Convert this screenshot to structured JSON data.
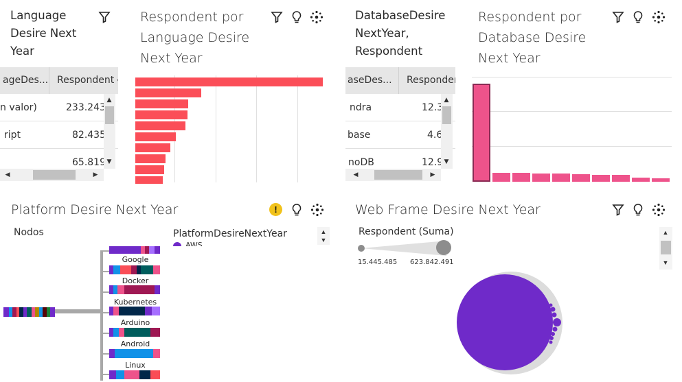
{
  "panels": {
    "lang_table": {
      "title": "Language Desire Next Year",
      "col1_header": "ageDes...",
      "col2_header": "Respondent",
      "rows": [
        {
          "c1": "n valor)",
          "c2": "233.243"
        },
        {
          "c1": "ript",
          "c2": "82.435"
        },
        {
          "c1": "",
          "c2": "65.819"
        }
      ]
    },
    "lang_chart": {
      "title": "Respondent por Language Desire Next Year"
    },
    "db_table": {
      "title": "DatabaseDesire NextYear, Respondent",
      "col1_header": "aseDes...",
      "col2_header": "Respondent",
      "rows": [
        {
          "c1": "ndra",
          "c2": "12.3"
        },
        {
          "c1": "base",
          "c2": "4.6"
        },
        {
          "c1": "noDB",
          "c2": "12.9"
        }
      ]
    },
    "db_chart": {
      "title": "Respondent por Database Desire Next Year"
    },
    "platform": {
      "title": "Platform Desire Next Year",
      "nodes_label": "Nodos",
      "legend_title": "PlatformDesireNextYear",
      "legend_first": "AWS",
      "node_labels": [
        "Google Clou...",
        "Docker",
        "Kubernetes",
        "Arduino",
        "Android",
        "Linux"
      ]
    },
    "webframe": {
      "title": "Web Frame Desire Next Year",
      "size_legend_title": "Respondent (Suma)",
      "size_min": "15.445.485",
      "size_max": "623.842.491"
    }
  },
  "chart_data": [
    {
      "type": "bar",
      "title": "Respondent por Language Desire Next Year",
      "orientation": "horizontal",
      "values": [
        233243,
        82435,
        65819,
        65000,
        62000,
        50000,
        44000,
        38000,
        36000,
        34000
      ],
      "color": "#fb4e58"
    },
    {
      "type": "bar",
      "title": "Respondent por Database Desire Next Year",
      "orientation": "vertical",
      "values": [
        140000,
        12900,
        12300,
        12000,
        11500,
        10500,
        10000,
        9500,
        6000,
        4600
      ],
      "color": "#ee538b"
    }
  ],
  "colors": {
    "accent_red": "#fb4e58",
    "accent_pink": "#ee538b",
    "purple": "#6f2ac9",
    "warning": "#f1c21b"
  }
}
